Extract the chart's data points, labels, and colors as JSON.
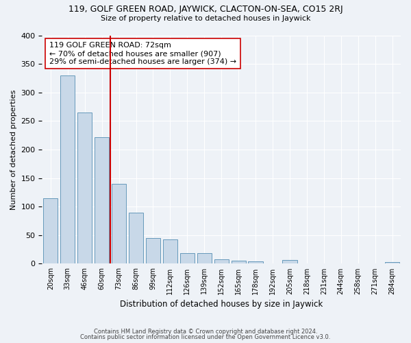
{
  "title": "119, GOLF GREEN ROAD, JAYWICK, CLACTON-ON-SEA, CO15 2RJ",
  "subtitle": "Size of property relative to detached houses in Jaywick",
  "xlabel": "Distribution of detached houses by size in Jaywick",
  "ylabel": "Number of detached properties",
  "bar_color": "#c8d8e8",
  "bar_edge_color": "#6699bb",
  "bins": [
    "20sqm",
    "33sqm",
    "46sqm",
    "60sqm",
    "73sqm",
    "86sqm",
    "99sqm",
    "112sqm",
    "126sqm",
    "139sqm",
    "152sqm",
    "165sqm",
    "178sqm",
    "192sqm",
    "205sqm",
    "218sqm",
    "231sqm",
    "244sqm",
    "258sqm",
    "271sqm",
    "284sqm"
  ],
  "values": [
    115,
    330,
    265,
    222,
    140,
    90,
    45,
    42,
    18,
    18,
    8,
    5,
    4,
    0,
    6,
    1,
    1,
    1,
    0,
    0,
    3
  ],
  "vline_bin_index": 4,
  "vline_color": "#cc0000",
  "annotation_text": "119 GOLF GREEN ROAD: 72sqm\n← 70% of detached houses are smaller (907)\n29% of semi-detached houses are larger (374) →",
  "annotation_box_color": "#ffffff",
  "annotation_box_edge": "#cc0000",
  "footnote1": "Contains HM Land Registry data © Crown copyright and database right 2024.",
  "footnote2": "Contains public sector information licensed under the Open Government Licence v3.0.",
  "ylim": [
    0,
    400
  ],
  "background_color": "#eef2f7",
  "grid_color": "#ffffff"
}
